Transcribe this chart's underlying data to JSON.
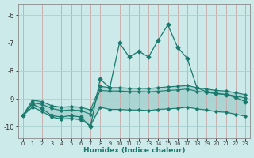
{
  "xlabel": "Humidex (Indice chaleur)",
  "xlim": [
    -0.5,
    23.5
  ],
  "ylim": [
    -10.4,
    -5.6
  ],
  "yticks": [
    -10,
    -9,
    -8,
    -7,
    -6
  ],
  "xticks": [
    0,
    1,
    2,
    3,
    4,
    5,
    6,
    7,
    8,
    9,
    10,
    11,
    12,
    13,
    14,
    15,
    16,
    17,
    18,
    19,
    20,
    21,
    22,
    23
  ],
  "bg_color": "#cceaea",
  "grid_color": "#aad0d0",
  "line_color": "#1a7a6e",
  "main_x": [
    0,
    1,
    2,
    3,
    4,
    5,
    6,
    7,
    8,
    9,
    10,
    11,
    12,
    13,
    14,
    15,
    16,
    17,
    18,
    19,
    20,
    21,
    22,
    23
  ],
  "main_y": [
    -9.6,
    -9.2,
    -9.35,
    -9.6,
    -9.65,
    -9.6,
    -9.65,
    -10.0,
    -8.3,
    -8.6,
    -7.0,
    -7.5,
    -7.3,
    -7.5,
    -6.9,
    -6.35,
    -7.15,
    -7.55,
    -8.6,
    -8.75,
    -8.8,
    -8.85,
    -8.95,
    -9.1
  ],
  "b1_x": [
    0,
    1,
    2,
    3,
    4,
    5,
    6,
    7,
    8,
    9,
    10,
    11,
    12,
    13,
    14,
    15,
    16,
    17,
    18,
    19,
    20,
    21,
    22,
    23
  ],
  "b1_y": [
    -9.6,
    -9.05,
    -9.1,
    -9.25,
    -9.3,
    -9.28,
    -9.3,
    -9.4,
    -8.55,
    -8.6,
    -8.6,
    -8.62,
    -8.62,
    -8.63,
    -8.6,
    -8.57,
    -8.55,
    -8.52,
    -8.6,
    -8.65,
    -8.7,
    -8.72,
    -8.78,
    -8.85
  ],
  "b2_x": [
    0,
    1,
    2,
    3,
    4,
    5,
    6,
    7,
    8,
    9,
    10,
    11,
    12,
    13,
    14,
    15,
    16,
    17,
    18,
    19,
    20,
    21,
    22,
    23
  ],
  "b2_y": [
    -9.6,
    -9.15,
    -9.2,
    -9.35,
    -9.42,
    -9.4,
    -9.42,
    -9.55,
    -8.7,
    -8.72,
    -8.72,
    -8.74,
    -8.74,
    -8.75,
    -8.73,
    -8.7,
    -8.68,
    -8.65,
    -8.73,
    -8.77,
    -8.82,
    -8.84,
    -8.9,
    -8.97
  ],
  "b3_x": [
    0,
    1,
    2,
    3,
    4,
    5,
    6,
    7,
    8,
    9,
    10,
    11,
    12,
    13,
    14,
    15,
    16,
    17,
    18,
    19,
    20,
    21,
    22,
    23
  ],
  "b3_y": [
    -9.6,
    -9.3,
    -9.45,
    -9.65,
    -9.72,
    -9.7,
    -9.75,
    -9.95,
    -9.3,
    -9.38,
    -9.38,
    -9.4,
    -9.4,
    -9.42,
    -9.38,
    -9.36,
    -9.34,
    -9.3,
    -9.36,
    -9.4,
    -9.46,
    -9.48,
    -9.55,
    -9.62
  ]
}
